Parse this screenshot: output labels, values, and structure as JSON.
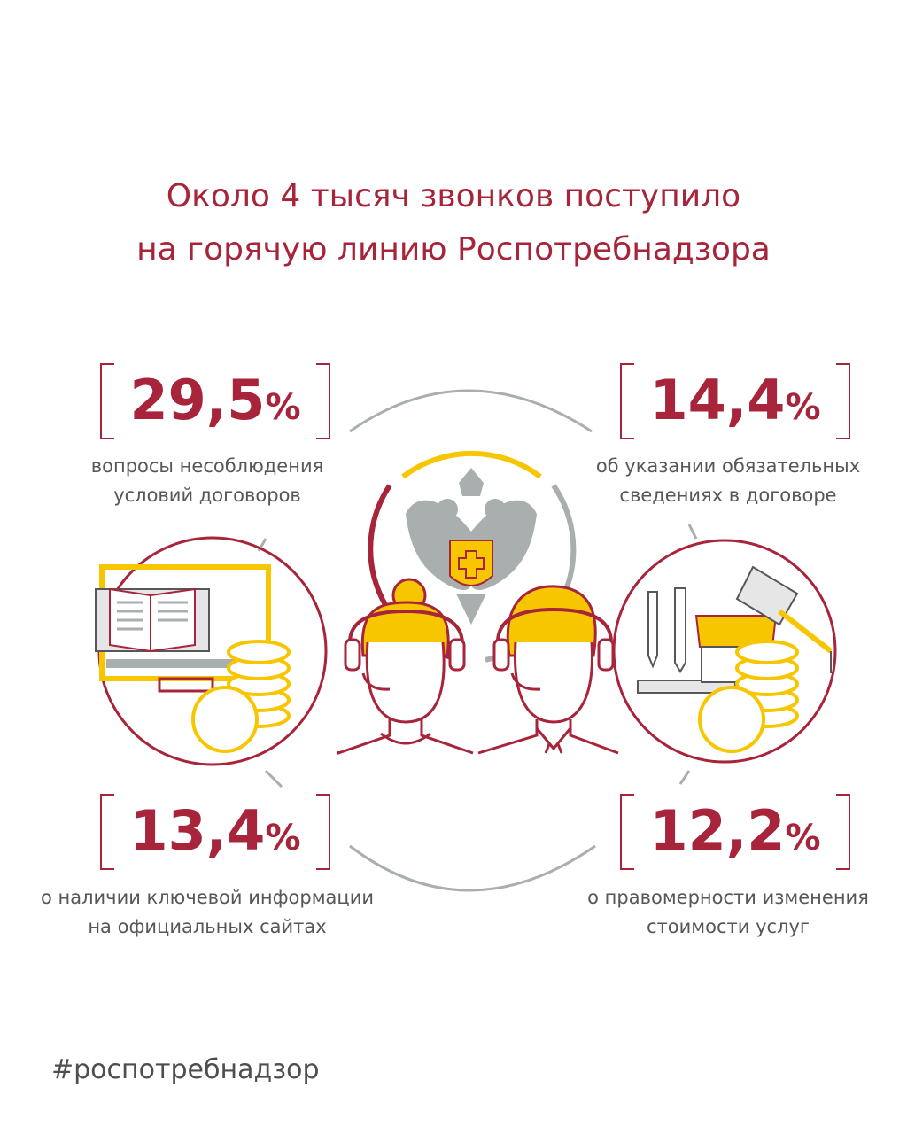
{
  "title": {
    "line1": "Около 4 тысяч звонков поступило",
    "line2": "на горячую линию Роспотребнадзора"
  },
  "stats": [
    {
      "value": "29,5",
      "unit": "%",
      "line1": "вопросы несоблюдения",
      "line2": "условий договоров"
    },
    {
      "value": "14,4",
      "unit": "%",
      "line1": "об указании обязательных",
      "line2": "сведениях в договоре"
    },
    {
      "value": "13,4",
      "unit": "%",
      "line1": "о наличии ключевой информации",
      "line2": "на официальных сайтах"
    },
    {
      "value": "12,2",
      "unit": "%",
      "line1": "о правомерности изменения",
      "line2": "стоимости услуг"
    }
  ],
  "hashtag": "#роспотребнадзор",
  "colors": {
    "brand_red": "#a7243a",
    "accent_yellow": "#f7c600",
    "gray_line": "#a9aeae",
    "text_gray": "#56565c"
  },
  "icons": [
    "computer-books-coins-icon",
    "emblem-eagle-icon",
    "operator-woman-icon",
    "operator-man-icon",
    "briefcase-graduation-coins-icon"
  ]
}
